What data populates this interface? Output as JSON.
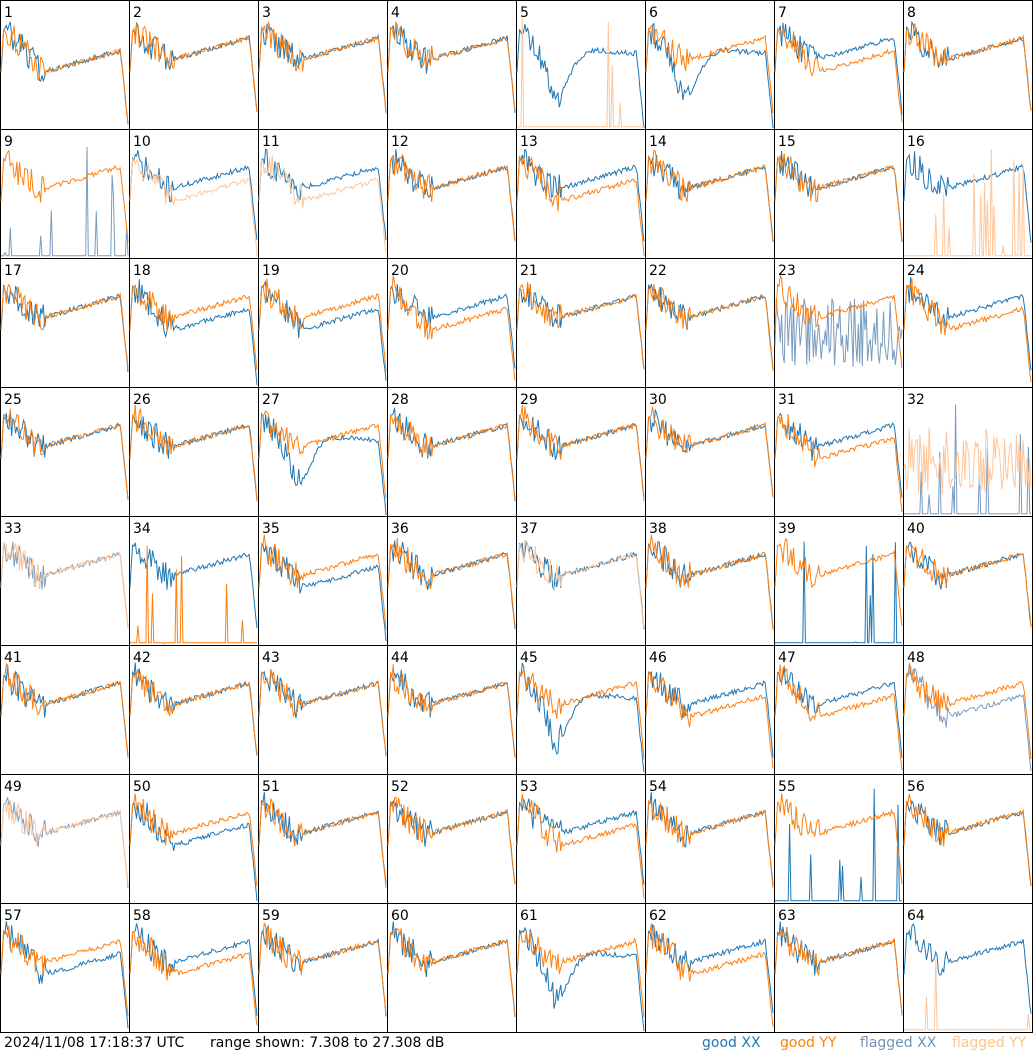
{
  "footer": {
    "timestamp": "2024/11/08 17:18:37 UTC",
    "range_label": "range shown: 7.308 to 27.308 dB"
  },
  "legend": {
    "good_xx": "good XX",
    "good_yy": "good YY",
    "flagged_xx": "flagged XX",
    "flagged_yy": "flagged YY"
  },
  "colors": {
    "good_xx": "#1f77b4",
    "good_yy": "#ff7f0e",
    "flagged_xx": "#7a9cc0",
    "flagged_yy": "#ffc69a"
  },
  "chart_data": {
    "type": "line",
    "grid_layout": "8x8",
    "y_unit": "dB",
    "ylim": [
      7.308,
      27.308
    ],
    "panels": [
      {
        "id": 1,
        "xx": "low",
        "yy": "low",
        "fx": false,
        "fy": false
      },
      {
        "id": 2,
        "xx": "norm",
        "yy": "norm",
        "fx": false,
        "fy": false
      },
      {
        "id": 3,
        "xx": "norm",
        "yy": "norm",
        "fx": false,
        "fy": false
      },
      {
        "id": 4,
        "xx": "norm",
        "yy": "norm",
        "fx": false,
        "fy": false
      },
      {
        "id": 5,
        "xx": "dip",
        "yy": "dead",
        "fx": false,
        "fy": true
      },
      {
        "id": 6,
        "xx": "dip",
        "yy": "norm",
        "fx": false,
        "fy": false
      },
      {
        "id": 7,
        "xx": "norm",
        "yy": "low",
        "fx": false,
        "fy": false
      },
      {
        "id": 8,
        "xx": "norm",
        "yy": "norm",
        "fx": false,
        "fy": false
      },
      {
        "id": 9,
        "xx": "dead",
        "yy": "norm",
        "fx": true,
        "fy": false
      },
      {
        "id": 10,
        "xx": "norm",
        "yy": "low",
        "fx": false,
        "fy": true
      },
      {
        "id": 11,
        "xx": "norm",
        "yy": "low",
        "fx": false,
        "fy": true
      },
      {
        "id": 12,
        "xx": "norm",
        "yy": "norm",
        "fx": false,
        "fy": false
      },
      {
        "id": 13,
        "xx": "norm",
        "yy": "low",
        "fx": false,
        "fy": false
      },
      {
        "id": 14,
        "xx": "norm",
        "yy": "norm",
        "fx": false,
        "fy": false
      },
      {
        "id": 15,
        "xx": "norm",
        "yy": "norm",
        "fx": false,
        "fy": false
      },
      {
        "id": 16,
        "xx": "norm",
        "yy": "dead",
        "fx": false,
        "fy": true
      },
      {
        "id": 17,
        "xx": "norm",
        "yy": "norm",
        "fx": false,
        "fy": false
      },
      {
        "id": 18,
        "xx": "low",
        "yy": "norm",
        "fx": false,
        "fy": false
      },
      {
        "id": 19,
        "xx": "low",
        "yy": "norm",
        "fx": false,
        "fy": false
      },
      {
        "id": 20,
        "xx": "norm",
        "yy": "low",
        "fx": false,
        "fy": false
      },
      {
        "id": 21,
        "xx": "norm",
        "yy": "norm",
        "fx": false,
        "fy": false
      },
      {
        "id": 22,
        "xx": "norm",
        "yy": "norm",
        "fx": false,
        "fy": false
      },
      {
        "id": 23,
        "xx": "noise",
        "yy": "norm",
        "fx": true,
        "fy": false
      },
      {
        "id": 24,
        "xx": "norm",
        "yy": "low",
        "fx": false,
        "fy": false
      },
      {
        "id": 25,
        "xx": "norm",
        "yy": "norm",
        "fx": false,
        "fy": false
      },
      {
        "id": 26,
        "xx": "norm",
        "yy": "norm",
        "fx": false,
        "fy": false
      },
      {
        "id": 27,
        "xx": "dip",
        "yy": "norm",
        "fx": false,
        "fy": false
      },
      {
        "id": 28,
        "xx": "norm",
        "yy": "norm",
        "fx": false,
        "fy": false
      },
      {
        "id": 29,
        "xx": "norm",
        "yy": "norm",
        "fx": false,
        "fy": false
      },
      {
        "id": 30,
        "xx": "norm",
        "yy": "norm",
        "fx": false,
        "fy": false
      },
      {
        "id": 31,
        "xx": "norm",
        "yy": "low",
        "fx": false,
        "fy": false
      },
      {
        "id": 32,
        "xx": "dead",
        "yy": "noise",
        "fx": true,
        "fy": true
      },
      {
        "id": 33,
        "xx": "norm",
        "yy": "norm",
        "fx": true,
        "fy": true
      },
      {
        "id": 34,
        "xx": "norm",
        "yy": "dead",
        "fx": false,
        "fy": false
      },
      {
        "id": 35,
        "xx": "low",
        "yy": "norm",
        "fx": false,
        "fy": false
      },
      {
        "id": 36,
        "xx": "norm",
        "yy": "norm",
        "fx": false,
        "fy": false
      },
      {
        "id": 37,
        "xx": "norm",
        "yy": "norm",
        "fx": false,
        "fy": true
      },
      {
        "id": 38,
        "xx": "norm",
        "yy": "norm",
        "fx": false,
        "fy": false
      },
      {
        "id": 39,
        "xx": "dead",
        "yy": "norm",
        "fx": false,
        "fy": false
      },
      {
        "id": 40,
        "xx": "norm",
        "yy": "norm",
        "fx": false,
        "fy": false
      },
      {
        "id": 41,
        "xx": "norm",
        "yy": "norm",
        "fx": false,
        "fy": false
      },
      {
        "id": 42,
        "xx": "norm",
        "yy": "norm",
        "fx": false,
        "fy": false
      },
      {
        "id": 43,
        "xx": "norm",
        "yy": "norm",
        "fx": false,
        "fy": false
      },
      {
        "id": 44,
        "xx": "norm",
        "yy": "norm",
        "fx": false,
        "fy": false
      },
      {
        "id": 45,
        "xx": "dip",
        "yy": "norm",
        "fx": false,
        "fy": false
      },
      {
        "id": 46,
        "xx": "norm",
        "yy": "low",
        "fx": false,
        "fy": false
      },
      {
        "id": 47,
        "xx": "norm",
        "yy": "low",
        "fx": false,
        "fy": false
      },
      {
        "id": 48,
        "xx": "low",
        "yy": "norm",
        "fx": true,
        "fy": false
      },
      {
        "id": 49,
        "xx": "norm",
        "yy": "norm",
        "fx": true,
        "fy": true
      },
      {
        "id": 50,
        "xx": "low",
        "yy": "norm",
        "fx": false,
        "fy": false
      },
      {
        "id": 51,
        "xx": "norm",
        "yy": "norm",
        "fx": false,
        "fy": false
      },
      {
        "id": 52,
        "xx": "norm",
        "yy": "norm",
        "fx": false,
        "fy": false
      },
      {
        "id": 53,
        "xx": "norm",
        "yy": "low",
        "fx": false,
        "fy": false
      },
      {
        "id": 54,
        "xx": "norm",
        "yy": "norm",
        "fx": false,
        "fy": false
      },
      {
        "id": 55,
        "xx": "dead",
        "yy": "norm",
        "fx": false,
        "fy": false
      },
      {
        "id": 56,
        "xx": "norm",
        "yy": "norm",
        "fx": false,
        "fy": false
      },
      {
        "id": 57,
        "xx": "low",
        "yy": "norm",
        "fx": false,
        "fy": false
      },
      {
        "id": 58,
        "xx": "norm",
        "yy": "low",
        "fx": false,
        "fy": false
      },
      {
        "id": 59,
        "xx": "norm",
        "yy": "norm",
        "fx": false,
        "fy": false
      },
      {
        "id": 60,
        "xx": "norm",
        "yy": "norm",
        "fx": false,
        "fy": false
      },
      {
        "id": 61,
        "xx": "dip",
        "yy": "norm",
        "fx": false,
        "fy": false
      },
      {
        "id": 62,
        "xx": "norm",
        "yy": "low",
        "fx": false,
        "fy": false
      },
      {
        "id": 63,
        "xx": "norm",
        "yy": "norm",
        "fx": false,
        "fy": false
      },
      {
        "id": 64,
        "xx": "norm",
        "yy": "dead",
        "fx": false,
        "fy": true
      }
    ]
  }
}
